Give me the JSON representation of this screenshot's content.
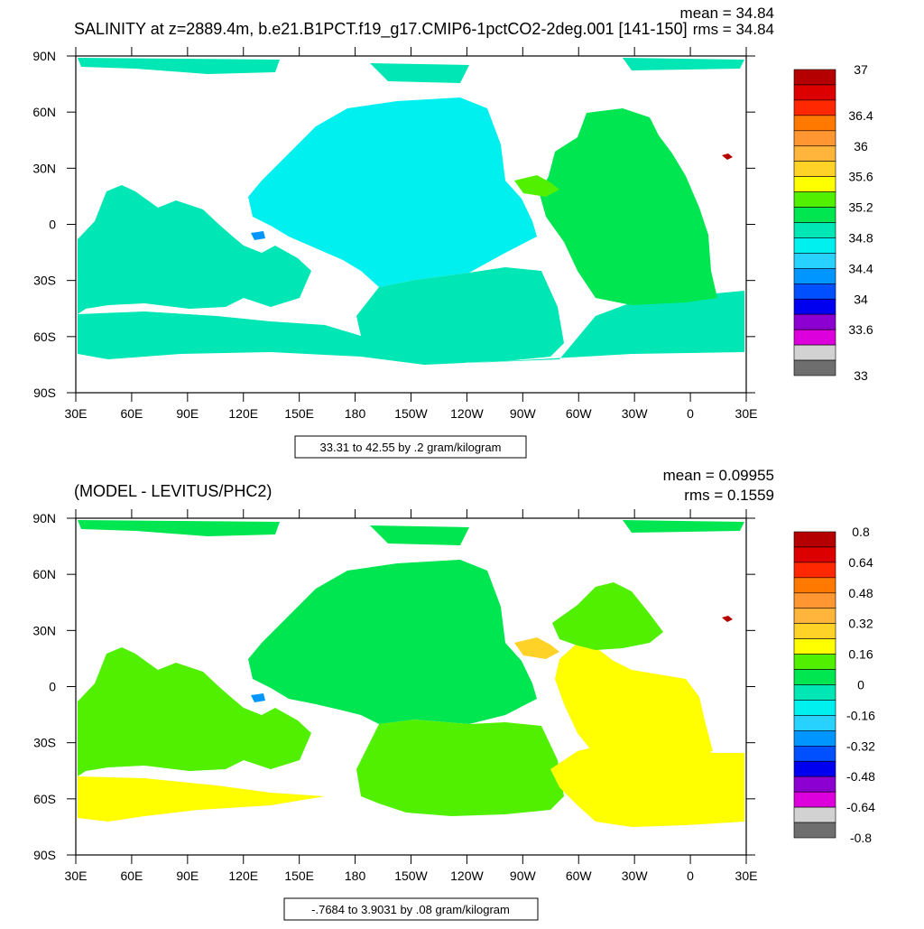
{
  "chart_data": [
    {
      "type": "heatmap",
      "title": "SALINITY at z=2889.4m, b.e21.B1PCT.f19_g17.CMIP6-1pctCO2-2deg.001 [141-150]",
      "mean_label": "mean = 34.84",
      "rms_label": "rms = 34.84",
      "x_ticks": [
        "30E",
        "60E",
        "90E",
        "120E",
        "150E",
        "180",
        "150W",
        "120W",
        "90W",
        "60W",
        "30W",
        "0",
        "30E"
      ],
      "y_ticks": [
        "90N",
        "60N",
        "30N",
        "0",
        "30S",
        "60S",
        "90S"
      ],
      "xlim": [
        30,
        390
      ],
      "ylim": [
        -90,
        90
      ],
      "info": "33.31 to 42.55 by .2 gram/kilogram",
      "colorbar": {
        "colors": [
          "#b40000",
          "#dc0000",
          "#ff2800",
          "#ff7800",
          "#ff9632",
          "#ffb43c",
          "#ffd228",
          "#ffff00",
          "#50f000",
          "#00e650",
          "#00e6b4",
          "#00f0f0",
          "#28d2ff",
          "#0096ff",
          "#0050ff",
          "#0000f0",
          "#8c00d2",
          "#dc00dc",
          "#d2d2d2",
          "#6e6e6e"
        ],
        "labels": [
          {
            "text": "37",
            "index": 0
          },
          {
            "text": "36.4",
            "index": 3
          },
          {
            "text": "36",
            "index": 5
          },
          {
            "text": "35.6",
            "index": 7
          },
          {
            "text": "35.2",
            "index": 9
          },
          {
            "text": "34.8",
            "index": 11
          },
          {
            "text": "34.4",
            "index": 13
          },
          {
            "text": "34",
            "index": 15
          },
          {
            "text": "33.6",
            "index": 17
          },
          {
            "text": "33",
            "index": 20
          }
        ]
      },
      "regions": [
        {
          "name": "arctic",
          "color": "#00e6b4"
        },
        {
          "name": "north-pacific",
          "color": "#00f0f0"
        },
        {
          "name": "indian-ocean",
          "color": "#00e6b4"
        },
        {
          "name": "south-pacific",
          "color": "#00e6b4"
        },
        {
          "name": "southern-ocean",
          "color": "#00e6b4"
        },
        {
          "name": "atlantic",
          "color": "#00e650"
        },
        {
          "name": "caribbean",
          "color": "#50f000"
        },
        {
          "name": "mediterranean",
          "color": "#b40000"
        },
        {
          "name": "indonesia",
          "color": "#0096ff"
        }
      ]
    },
    {
      "type": "heatmap",
      "title": "(MODEL - LEVITUS/PHC2)",
      "mean_label": "mean = 0.09955",
      "rms_label": "rms = 0.1559",
      "x_ticks": [
        "30E",
        "60E",
        "90E",
        "120E",
        "150E",
        "180",
        "150W",
        "120W",
        "90W",
        "60W",
        "30W",
        "0",
        "30E"
      ],
      "y_ticks": [
        "90N",
        "60N",
        "30N",
        "0",
        "30S",
        "60S",
        "90S"
      ],
      "xlim": [
        30,
        390
      ],
      "ylim": [
        -90,
        90
      ],
      "info": "-.7684 to 3.9031 by .08 gram/kilogram",
      "colorbar": {
        "colors": [
          "#b40000",
          "#dc0000",
          "#ff2800",
          "#ff7800",
          "#ff9632",
          "#ffb43c",
          "#ffd228",
          "#ffff00",
          "#50f000",
          "#00e650",
          "#00e6b4",
          "#00f0f0",
          "#28d2ff",
          "#0096ff",
          "#0050ff",
          "#0000f0",
          "#8c00d2",
          "#dc00dc",
          "#d2d2d2",
          "#6e6e6e"
        ],
        "labels": [
          {
            "text": "0.8",
            "index": 0
          },
          {
            "text": "0.64",
            "index": 2
          },
          {
            "text": "0.48",
            "index": 4
          },
          {
            "text": "0.32",
            "index": 6
          },
          {
            "text": "0.16",
            "index": 8
          },
          {
            "text": "0",
            "index": 10
          },
          {
            "text": "-0.16",
            "index": 12
          },
          {
            "text": "-0.32",
            "index": 14
          },
          {
            "text": "-0.48",
            "index": 16
          },
          {
            "text": "-0.64",
            "index": 18
          },
          {
            "text": "-0.8",
            "index": 20
          }
        ]
      },
      "regions": [
        {
          "name": "arctic",
          "color": "#00e650"
        },
        {
          "name": "north-pacific",
          "color": "#00e650"
        },
        {
          "name": "indian-ocean",
          "color": "#50f000"
        },
        {
          "name": "south-pacific",
          "color": "#50f000"
        },
        {
          "name": "southern-ocean",
          "color": "#ffff00"
        },
        {
          "name": "atlantic",
          "color": "#ffff00"
        },
        {
          "name": "north-atlantic",
          "color": "#50f000"
        },
        {
          "name": "caribbean",
          "color": "#ffd228"
        },
        {
          "name": "mediterranean",
          "color": "#b40000"
        },
        {
          "name": "indonesia",
          "color": "#0096ff"
        }
      ]
    }
  ]
}
